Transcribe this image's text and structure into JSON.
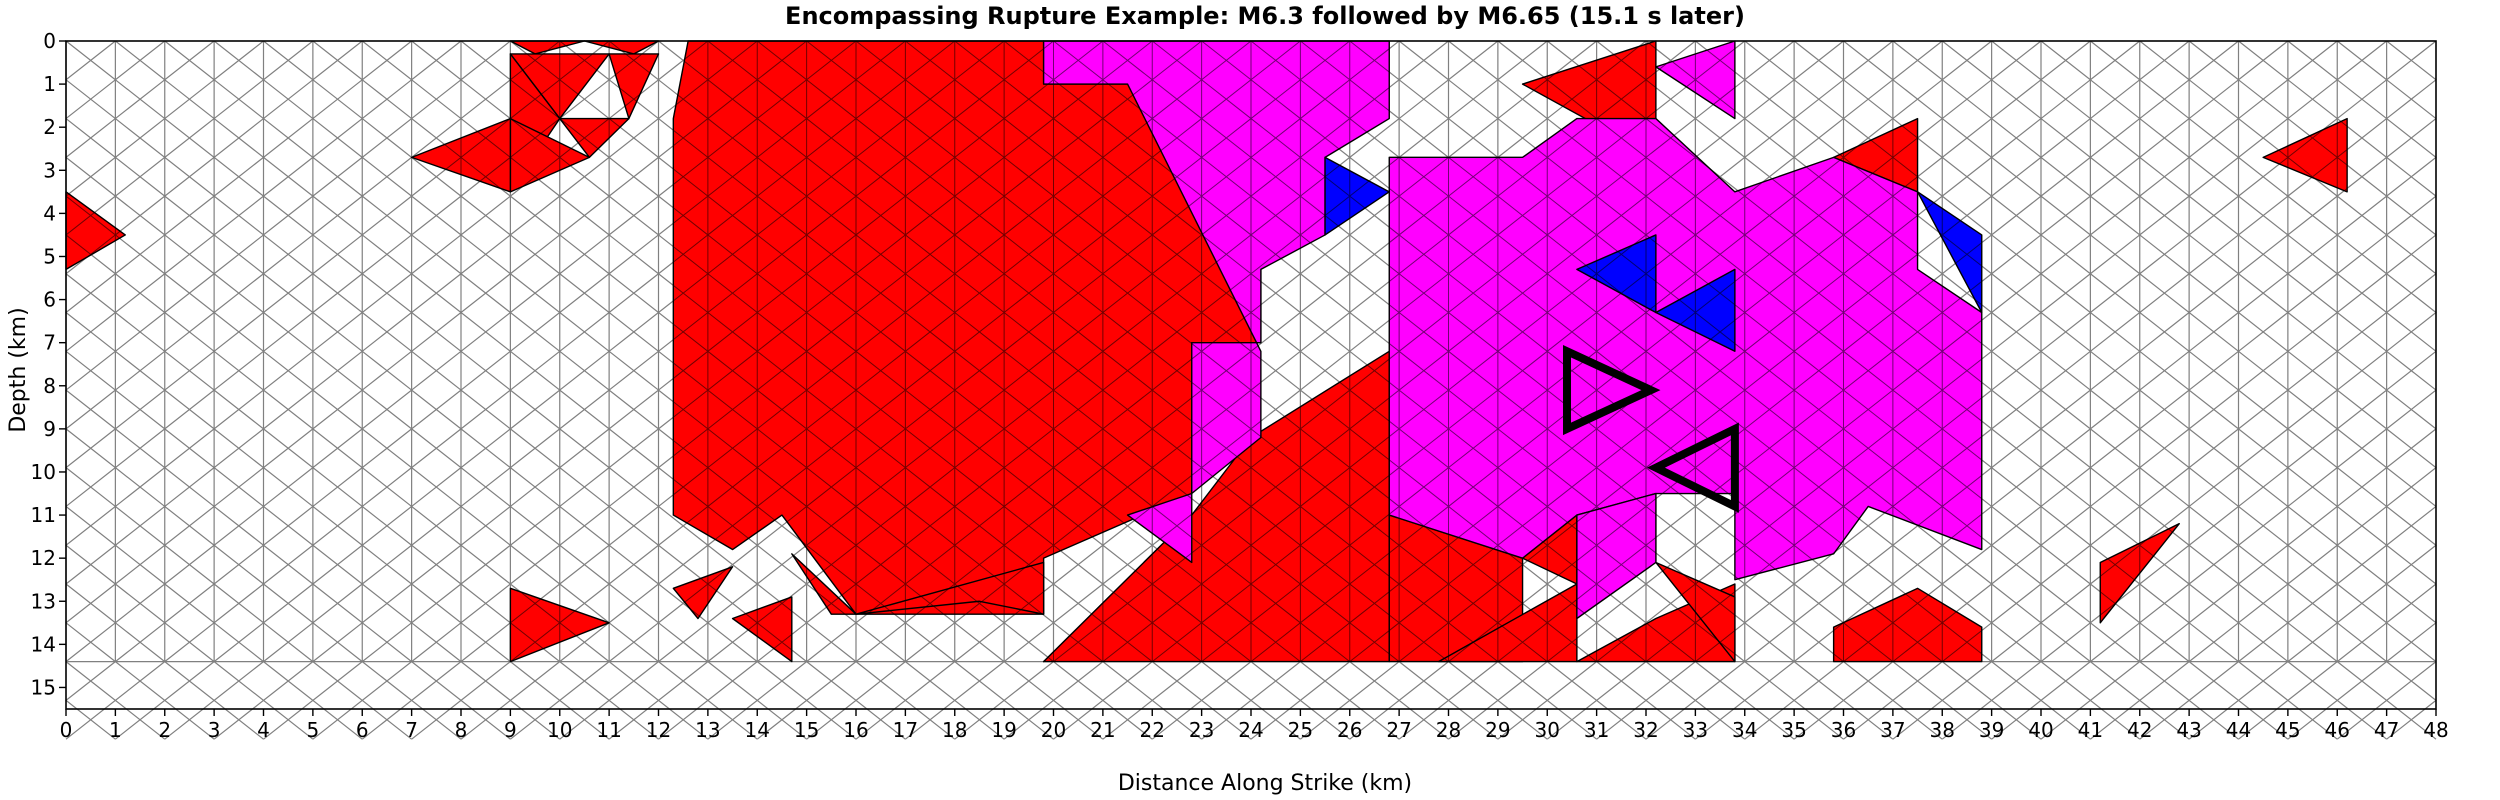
{
  "chart_data": {
    "type": "heatmap",
    "title": "Encompassing Rupture Example: M6.3 followed by M6.65 (15.1 s later)",
    "xlabel": "Distance Along Strike (km)",
    "ylabel": "Depth (km)",
    "xlim": [
      0,
      48
    ],
    "ylim": [
      15.5,
      0
    ],
    "x_ticks": [
      "0",
      "1",
      "2",
      "3",
      "4",
      "5",
      "6",
      "7",
      "8",
      "9",
      "10",
      "11",
      "12",
      "13",
      "14",
      "15",
      "16",
      "17",
      "18",
      "19",
      "20",
      "21",
      "22",
      "23",
      "24",
      "25",
      "26",
      "27",
      "28",
      "29",
      "30",
      "31",
      "32",
      "33",
      "34",
      "35",
      "36",
      "37",
      "38",
      "39",
      "40",
      "41",
      "42",
      "43",
      "44",
      "45",
      "46",
      "47",
      "48"
    ],
    "y_ticks": [
      "0",
      "1",
      "2",
      "3",
      "4",
      "5",
      "6",
      "7",
      "8",
      "9",
      "10",
      "11",
      "12",
      "13",
      "14",
      "15"
    ],
    "colors": {
      "first_rupture": "#ff0000",
      "second_rupture": "#ff00ff",
      "other": "#0000ff",
      "unruptured": "#ffffff",
      "mesh_edge": "#808080",
      "rupture_edge": "#000000",
      "highlight_outline": "#000000"
    },
    "series": [
      {
        "color": "red",
        "cells": [
          {
            "x": [
              9,
              9.5,
              10.5
            ],
            "y": [
              0,
              0.3,
              0
            ]
          },
          {
            "x": [
              10.5,
              11.5,
              12
            ],
            "y": [
              0,
              0.3,
              0
            ]
          },
          {
            "x": [
              9,
              11,
              10
            ],
            "y": [
              0.3,
              0.3,
              1.8
            ]
          },
          {
            "x": [
              11,
              12,
              11.4
            ],
            "y": [
              0.3,
              0.3,
              1.8
            ]
          },
          {
            "x": [
              9,
              10,
              9
            ],
            "y": [
              0.3,
              1.8,
              3.5
            ]
          },
          {
            "x": [
              10,
              11.4,
              10.6
            ],
            "y": [
              1.8,
              1.8,
              2.7
            ]
          },
          {
            "x": [
              9,
              10.6,
              9
            ],
            "y": [
              1.8,
              2.7,
              3.5
            ]
          },
          {
            "x": [
              7,
              9,
              9
            ],
            "y": [
              2.7,
              1.8,
              3.5
            ]
          },
          {
            "x": [
              0,
              1.2,
              0
            ],
            "y": [
              3.5,
              4.5,
              5.3
            ]
          },
          {
            "x": [
              12.6,
              19.8,
              19.8,
              21.5,
              24.2,
              24.2,
              22.8,
              22.8,
              19.8,
              19.8,
              16,
              14.5,
              13.5,
              12.3,
              12.3
            ],
            "y": [
              0,
              0,
              1.0,
              1.0,
              3.0,
              7.0,
              7.0,
              10.5,
              12.0,
              13.3,
              13.3,
              11.0,
              11.8,
              11.0,
              1.8
            ]
          },
          {
            "x": [
              12.3,
              13.5,
              12.8
            ],
            "y": [
              12.7,
              12.2,
              13.4
            ]
          },
          {
            "x": [
              13.5,
              14.7,
              14.7
            ],
            "y": [
              13.4,
              12.9,
              14.4
            ]
          },
          {
            "x": [
              9,
              11,
              9
            ],
            "y": [
              12.7,
              13.5,
              14.4
            ]
          },
          {
            "x": [
              14.7,
              16,
              15.5
            ],
            "y": [
              11.9,
              13.3,
              13.3
            ]
          },
          {
            "x": [
              16,
              18.5,
              19.8,
              19.8
            ],
            "y": [
              13.3,
              13.0,
              13.3,
              12.1
            ]
          },
          {
            "x": [
              19.8,
              22.8,
              22.8
            ],
            "y": [
              14.4,
              12.1,
              11.0
            ]
          },
          {
            "x": [
              19.8,
              22.8,
              26.8,
              26.8,
              24.0,
              22.8
            ],
            "y": [
              14.4,
              14.4,
              14.4,
              7.2,
              9.2,
              11.0
            ]
          },
          {
            "x": [
              26.8,
              29.5,
              29.5,
              26.8
            ],
            "y": [
              11.0,
              12.0,
              14.4,
              14.4
            ]
          },
          {
            "x": [
              27.8,
              30.6,
              30.6
            ],
            "y": [
              14.4,
              12.6,
              14.4
            ]
          },
          {
            "x": [
              29.5,
              30.6,
              30.6
            ],
            "y": [
              12.0,
              11.0,
              12.6
            ]
          },
          {
            "x": [
              30.6,
              32.2,
              33.8,
              33.8
            ],
            "y": [
              14.4,
              13.4,
              12.6,
              14.4
            ]
          },
          {
            "x": [
              32.2,
              33.8,
              33.8
            ],
            "y": [
              12.1,
              12.9,
              14.4
            ]
          },
          {
            "x": [
              30.6,
              32.2,
              32.2
            ],
            "y": [
              11.0,
              10.5,
              12.1
            ]
          },
          {
            "x": [
              29.5,
              32.2,
              32.2
            ],
            "y": [
              1.0,
              0,
              2.7
            ]
          },
          {
            "x": [
              30.6,
              32.2,
              32.2
            ],
            "y": [
              2.7,
              2.7,
              4.5
            ]
          },
          {
            "x": [
              35.8,
              37.5,
              37.5
            ],
            "y": [
              2.7,
              1.8,
              3.5
            ]
          },
          {
            "x": [
              44.5,
              46.2,
              46.2
            ],
            "y": [
              2.7,
              1.8,
              3.5
            ]
          },
          {
            "x": [
              41.2,
              42.8,
              41.2
            ],
            "y": [
              12.1,
              11.2,
              13.5
            ]
          },
          {
            "x": [
              35.8,
              37.5,
              38.8,
              38.8,
              35.8
            ],
            "y": [
              13.6,
              12.7,
              13.6,
              14.4,
              14.4
            ]
          }
        ]
      },
      {
        "color": "magenta",
        "cells": [
          {
            "x": [
              19.8,
              26.8,
              26.8,
              25.5,
              25.5,
              24.2,
              24.2,
              22.8,
              22.8,
              24.2,
              24.2,
              21.5,
              19.8
            ],
            "y": [
              0,
              0,
              1.8,
              2.7,
              4.5,
              5.3,
              7.0,
              7.0,
              10.5,
              9.2,
              7.2,
              1.0,
              1.0
            ]
          },
          {
            "x": [
              21.5,
              22.8,
              22.8
            ],
            "y": [
              11.0,
              10.5,
              12.1
            ]
          },
          {
            "x": [
              26.8,
              29.5,
              30.6,
              32.2,
              33.8,
              35.8,
              37.5,
              37.5,
              38.8,
              38.8,
              36.5,
              35.8,
              33.8,
              33.8,
              32.2,
              30.6,
              29.5,
              26.8
            ],
            "y": [
              2.7,
              2.7,
              1.8,
              1.8,
              3.5,
              2.7,
              3.5,
              5.3,
              6.3,
              11.8,
              10.8,
              11.9,
              12.5,
              10.5,
              10.5,
              11.0,
              12.0,
              11.0
            ]
          },
          {
            "x": [
              32.2,
              33.8,
              33.8
            ],
            "y": [
              0.6,
              0,
              1.8
            ]
          },
          {
            "x": [
              30.6,
              32.2,
              32.2,
              30.6
            ],
            "y": [
              11.0,
              10.5,
              12.1,
              13.4
            ]
          }
        ]
      },
      {
        "color": "blue",
        "cells": [
          {
            "x": [
              25.5,
              26.8,
              25.5
            ],
            "y": [
              2.7,
              3.5,
              4.5
            ]
          },
          {
            "x": [
              30.6,
              32.2,
              32.2
            ],
            "y": [
              5.3,
              4.5,
              6.3
            ]
          },
          {
            "x": [
              32.2,
              33.8,
              33.8
            ],
            "y": [
              6.3,
              5.3,
              7.2
            ]
          },
          {
            "x": [
              37.5,
              38.8,
              38.8
            ],
            "y": [
              3.5,
              4.5,
              6.3
            ]
          }
        ]
      }
    ],
    "highlight_triangles": [
      {
        "x": [
          30.4,
          32.1,
          30.4
        ],
        "y": [
          7.2,
          8.1,
          9.0
        ]
      },
      {
        "x": [
          32.2,
          33.8,
          33.8
        ],
        "y": [
          9.9,
          9.0,
          10.8
        ]
      }
    ]
  }
}
